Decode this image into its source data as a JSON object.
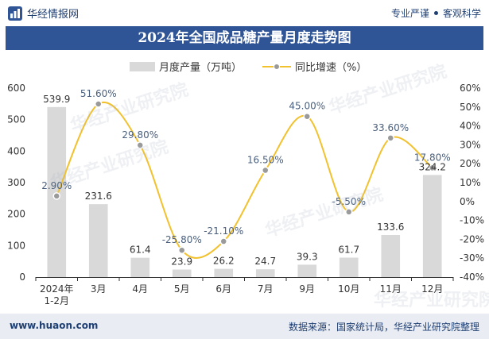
{
  "header": {
    "brand": "华经情报网",
    "tag1": "专业严谨",
    "tag2": "客观科学"
  },
  "chart_title": "2024年全国成品糖产量月度走势图",
  "footer": {
    "website": "www.huaon.com",
    "source": "数据来源：国家统计局，华经产业研究院整理"
  },
  "watermark": "华经产业研究院",
  "colors": {
    "bar": "#d9d9d9",
    "line": "#f2c12e",
    "marker": "#9a9a9a",
    "title_bg": "#2f5597"
  },
  "chart_data": {
    "type": "bar",
    "categories": [
      "2024年\n1-2月",
      "3月",
      "4月",
      "5月",
      "6月",
      "7月",
      "9月",
      "10月",
      "11月",
      "12月"
    ],
    "series": [
      {
        "name": "月度产量（万吨）",
        "type": "bar",
        "axis": "left",
        "values": [
          539.9,
          231.6,
          61.4,
          23.9,
          26.2,
          24.7,
          39.3,
          61.7,
          133.6,
          324.2
        ],
        "labels": [
          "539.9",
          "231.6",
          "61.4",
          "23.9",
          "26.2",
          "24.7",
          "39.3",
          "61.7",
          "133.6",
          "324.2"
        ]
      },
      {
        "name": "同比增速（%）",
        "type": "line",
        "axis": "right",
        "values": [
          2.9,
          51.6,
          29.8,
          -25.8,
          -21.1,
          16.5,
          45.0,
          -5.5,
          33.6,
          17.8
        ],
        "labels": [
          "2.90%",
          "51.60%",
          "29.80%",
          "-25.80%",
          "-21.10%",
          "16.50%",
          "45.00%",
          "-5.50%",
          "33.60%",
          "17.80%"
        ]
      }
    ],
    "left_axis": {
      "min": 0,
      "max": 600,
      "ticks": [
        "0",
        "100",
        "200",
        "300",
        "400",
        "500",
        "600"
      ]
    },
    "right_axis": {
      "min": -40,
      "max": 60,
      "ticks": [
        "-40%",
        "-30%",
        "-20%",
        "-10%",
        "0%",
        "10%",
        "20%",
        "30%",
        "40%",
        "50%",
        "60%"
      ]
    },
    "legend_position": "top-center",
    "grid": false
  }
}
